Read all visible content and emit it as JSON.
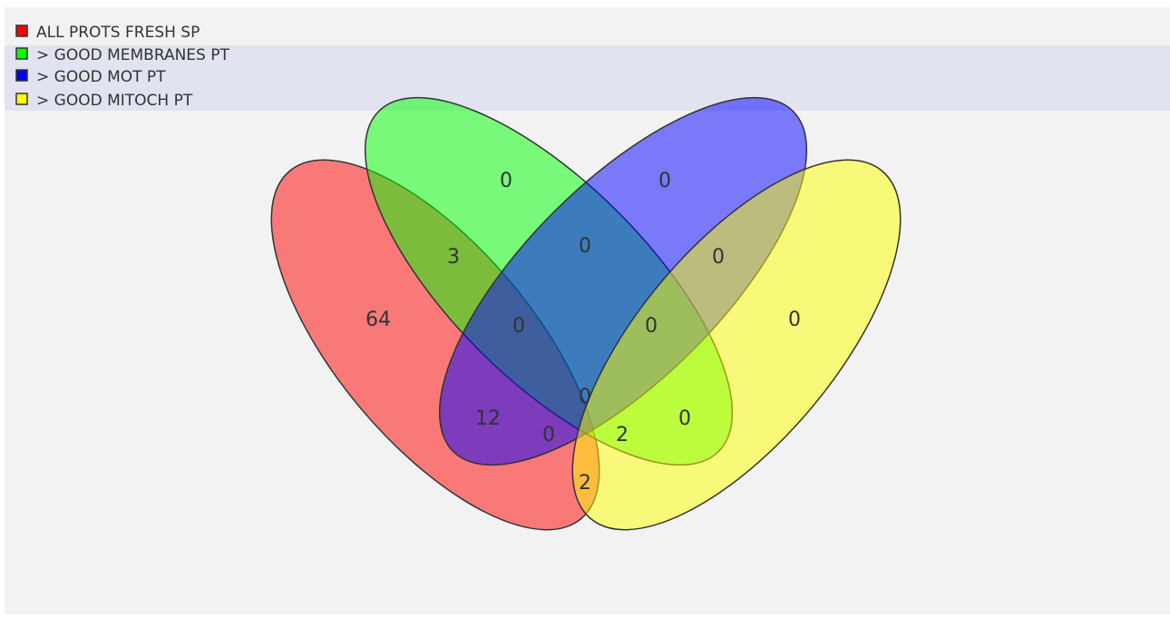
{
  "legend": {
    "items": [
      {
        "label": "ALL PROTS FRESH SP",
        "color": "#ff0000"
      },
      {
        "label": "> GOOD MEMBRANES PT",
        "color": "#00ff00"
      },
      {
        "label": "> GOOD MOT PT",
        "color": "#0000ff"
      },
      {
        "label": "> GOOD MITOCH PT",
        "color": "#ffff00"
      }
    ]
  },
  "regions": [
    64,
    3,
    0,
    0,
    0,
    0,
    0,
    0,
    0,
    12,
    0,
    0,
    0,
    2,
    2
  ]
}
